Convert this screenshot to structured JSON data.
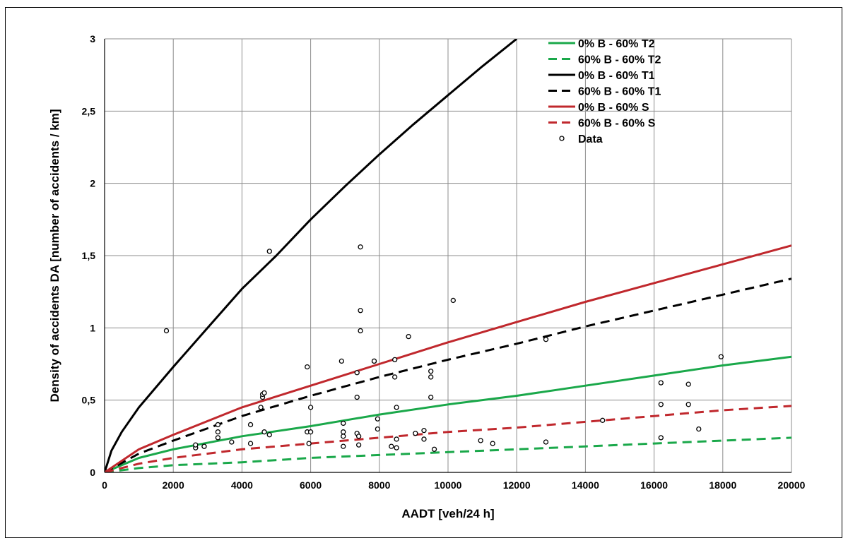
{
  "chart_data": {
    "type": "scatter",
    "title": "",
    "xlabel": "AADT  [veh/24 h]",
    "ylabel": "Density of accidents DA [number of accidents / km]",
    "xlim": [
      0,
      20000
    ],
    "ylim": [
      0,
      3
    ],
    "x_ticks": [
      0,
      2000,
      4000,
      6000,
      8000,
      10000,
      12000,
      14000,
      16000,
      18000,
      20000
    ],
    "x_tick_labels": [
      "0",
      "2000",
      "4000",
      "6000",
      "8000",
      "10000",
      "12000",
      "14000",
      "16000",
      "18000",
      "20000"
    ],
    "y_ticks": [
      0,
      0.5,
      1,
      1.5,
      2,
      2.5,
      3
    ],
    "y_tick_labels": [
      "0",
      "0,5",
      "1",
      "1,5",
      "2",
      "2,5",
      "3"
    ],
    "grid": true,
    "legend_position": "top-right",
    "series": [
      {
        "name": "0% B - 60% T2",
        "kind": "line",
        "style": "solid",
        "color": "#1aa84a",
        "x": [
          0,
          1000,
          2000,
          4000,
          6000,
          8000,
          10000,
          12000,
          14000,
          16000,
          18000,
          20000
        ],
        "y": [
          0.0,
          0.1,
          0.16,
          0.25,
          0.32,
          0.4,
          0.47,
          0.53,
          0.6,
          0.67,
          0.74,
          0.8
        ]
      },
      {
        "name": "60% B - 60% T2",
        "kind": "line",
        "style": "dashed",
        "color": "#1aa84a",
        "x": [
          0,
          1000,
          2000,
          4000,
          6000,
          8000,
          10000,
          12000,
          14000,
          16000,
          18000,
          20000
        ],
        "y": [
          0.0,
          0.03,
          0.05,
          0.07,
          0.1,
          0.12,
          0.14,
          0.16,
          0.18,
          0.2,
          0.22,
          0.24
        ]
      },
      {
        "name": "0% B - 60% T1",
        "kind": "line",
        "style": "solid",
        "color": "#000000",
        "x": [
          0,
          200,
          500,
          1000,
          2000,
          3000,
          4000,
          5000,
          6000,
          7000,
          8000,
          9000,
          10000,
          11000,
          12000
        ],
        "y": [
          0.0,
          0.15,
          0.28,
          0.45,
          0.73,
          1.0,
          1.27,
          1.5,
          1.75,
          1.98,
          2.2,
          2.41,
          2.61,
          2.81,
          3.0
        ]
      },
      {
        "name": "60% B - 60% T1",
        "kind": "line",
        "style": "dashed",
        "color": "#000000",
        "x": [
          0,
          1000,
          2000,
          4000,
          6000,
          8000,
          10000,
          12000,
          14000,
          16000,
          18000,
          20000
        ],
        "y": [
          0.0,
          0.13,
          0.22,
          0.39,
          0.53,
          0.66,
          0.78,
          0.89,
          1.01,
          1.12,
          1.23,
          1.34
        ]
      },
      {
        "name": "0% B - 60% S",
        "kind": "line",
        "style": "solid",
        "color": "#c0282d",
        "x": [
          0,
          1000,
          2000,
          4000,
          6000,
          8000,
          10000,
          12000,
          14000,
          16000,
          18000,
          20000
        ],
        "y": [
          0.0,
          0.16,
          0.26,
          0.45,
          0.6,
          0.75,
          0.9,
          1.04,
          1.18,
          1.31,
          1.44,
          1.57
        ]
      },
      {
        "name": "60% B - 60% S",
        "kind": "line",
        "style": "dashed",
        "color": "#c0282d",
        "x": [
          0,
          1000,
          2000,
          4000,
          6000,
          8000,
          10000,
          12000,
          14000,
          16000,
          18000,
          20000
        ],
        "y": [
          0.0,
          0.06,
          0.1,
          0.16,
          0.2,
          0.24,
          0.28,
          0.31,
          0.35,
          0.39,
          0.43,
          0.46
        ]
      },
      {
        "name": "Data",
        "kind": "points",
        "color": "#000000",
        "x": [
          1800,
          2650,
          2650,
          2900,
          2900,
          3300,
          3300,
          3300,
          3700,
          4250,
          4250,
          4550,
          4600,
          4600,
          4650,
          4650,
          4800,
          4800,
          5900,
          5900,
          5950,
          6000,
          6000,
          6900,
          6950,
          6950,
          6950,
          6950,
          7350,
          7350,
          7350,
          7400,
          7400,
          7450,
          7450,
          7450,
          7850,
          7850,
          7950,
          7950,
          8350,
          8450,
          8450,
          8500,
          8500,
          8500,
          8850,
          9050,
          9300,
          9300,
          9500,
          9500,
          9500,
          9600,
          10150,
          10950,
          11300,
          12850,
          12850,
          14500,
          16200,
          16200,
          16200,
          17000,
          17000,
          17300,
          17950
        ],
        "y": [
          0.98,
          0.17,
          0.19,
          0.18,
          0.18,
          0.24,
          0.28,
          0.33,
          0.21,
          0.2,
          0.33,
          0.45,
          0.52,
          0.54,
          0.55,
          0.28,
          0.26,
          1.53,
          0.73,
          0.28,
          0.2,
          0.45,
          0.28,
          0.77,
          0.34,
          0.25,
          0.28,
          0.18,
          0.52,
          0.69,
          0.27,
          0.25,
          0.19,
          1.56,
          1.12,
          0.98,
          0.77,
          0.77,
          0.37,
          0.3,
          0.18,
          0.66,
          0.78,
          0.45,
          0.23,
          0.17,
          0.94,
          0.27,
          0.23,
          0.29,
          0.7,
          0.66,
          0.52,
          0.16,
          1.19,
          0.22,
          0.2,
          0.92,
          0.21,
          0.36,
          0.62,
          0.47,
          0.24,
          0.61,
          0.47,
          0.3,
          0.8
        ]
      }
    ]
  }
}
